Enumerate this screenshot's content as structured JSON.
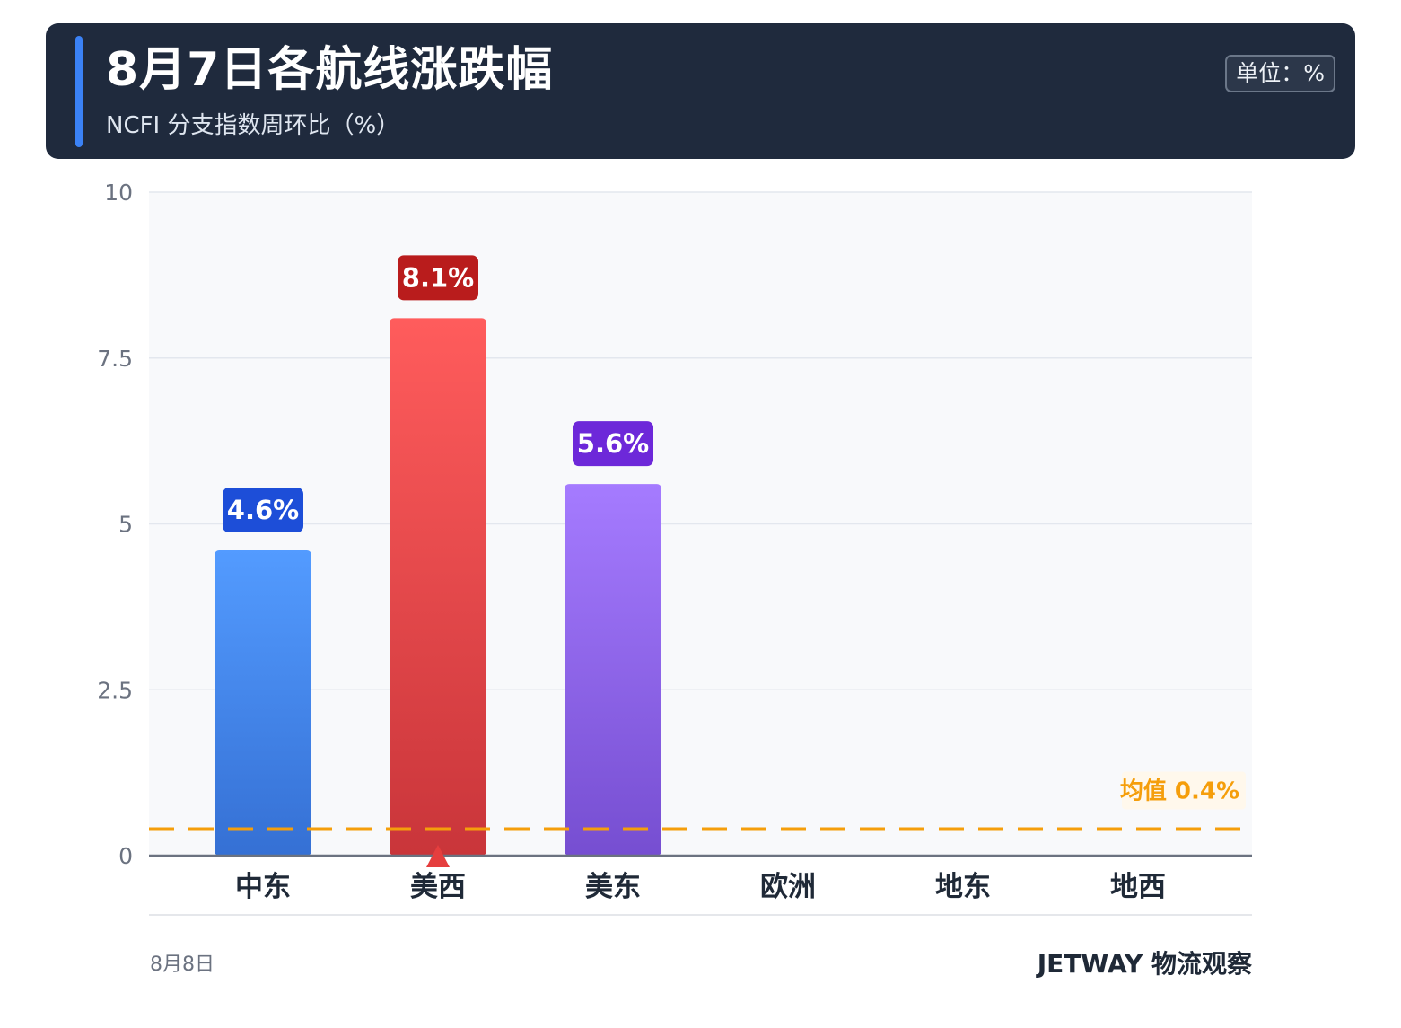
{
  "header": {
    "title": "8月7日各航线涨跌幅",
    "subtitle": "NCFI 分支指数周环比（%）",
    "unit_label": "单位：%"
  },
  "footer": {
    "date": "8月8日",
    "brand": "JETWAY 物流观察"
  },
  "colors": {
    "header_bg": "#1f2a3d",
    "accent": "#3b82f6",
    "mean_line": "#f59e0b",
    "highlight_marker": "#e53e3e"
  },
  "chart_data": {
    "type": "bar",
    "categories": [
      "中东",
      "美西",
      "美东",
      "欧洲",
      "地东",
      "地西"
    ],
    "values": [
      4.6,
      8.1,
      5.6,
      0,
      0,
      0
    ],
    "value_labels": [
      "4.6%",
      "8.1%",
      "5.6%",
      "",
      "",
      ""
    ],
    "bar_colors": [
      {
        "top": "#539bff",
        "bottom": "#3570d4",
        "label_bg": "#1d4ed8"
      },
      {
        "top": "#ff5c5c",
        "bottom": "#c9353a",
        "label_bg": "#b91c1c"
      },
      {
        "top": "#a57bff",
        "bottom": "#764ed1",
        "label_bg": "#6d28d9"
      },
      null,
      null,
      null
    ],
    "highlight_category": "美西",
    "y_ticks": [
      0,
      2.5,
      5,
      7.5,
      10
    ],
    "y_tick_labels": [
      "0",
      "2.5",
      "5",
      "7.5",
      "10"
    ],
    "ylim": [
      0,
      10
    ],
    "mean": {
      "value": 0.4,
      "label": "均值 0.4%"
    },
    "grid": true,
    "xlabel": "",
    "ylabel": ""
  }
}
